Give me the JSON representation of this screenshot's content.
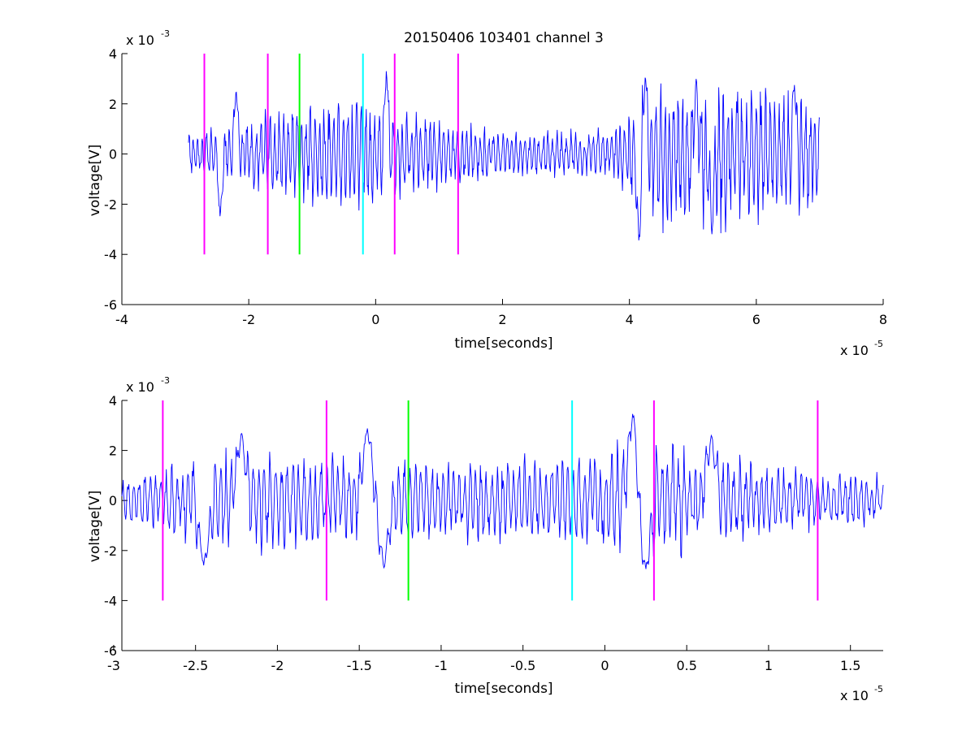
{
  "colors": {
    "signal": "#0000ff",
    "axis": "#000000",
    "marker_magenta": "#ff00ff",
    "marker_green": "#00ff00",
    "marker_cyan": "#00ffff",
    "background": "#ffffff"
  },
  "chart_data": [
    {
      "type": "line",
      "title": "20150406 103401 channel 3",
      "xlabel": "time[seconds]",
      "ylabel": "voltage[V]",
      "x_exponent_label": "x 10",
      "x_exponent": "-5",
      "y_exponent_label": "x 10",
      "y_exponent": "-3",
      "xlim": [
        -4,
        8
      ],
      "ylim": [
        -6,
        4
      ],
      "xticks": [
        "-4",
        "-2",
        "0",
        "2",
        "4",
        "6",
        "8"
      ],
      "yticks": [
        "-6",
        "-4",
        "-2",
        "0",
        "2",
        "4"
      ],
      "grid": false,
      "series": [
        {
          "color": "signal",
          "x_range": [
            -2.95,
            7.0
          ],
          "env_points": [
            [
              -2.95,
              0.8
            ],
            [
              -0.3,
              2.2
            ],
            [
              0.3,
              1.6
            ],
            [
              2.0,
              0.8
            ],
            [
              3.8,
              0.9
            ],
            [
              4.2,
              2.5
            ],
            [
              5.2,
              2.7
            ],
            [
              6.0,
              2.4
            ],
            [
              6.5,
              2.6
            ],
            [
              7.0,
              2.1
            ]
          ],
          "shape_points": [
            {
              "x": 0.17,
              "y": 3.5
            },
            {
              "x": 4.15,
              "y": -3.6
            },
            {
              "x": 4.25,
              "y": 3.3
            },
            {
              "x": 5.3,
              "y": -3.2
            },
            {
              "x": 5.05,
              "y": 3.0
            },
            {
              "x": 6.6,
              "y": 2.9
            },
            {
              "x": -2.2,
              "y": 2.7
            },
            {
              "x": -2.45,
              "y": -2.6
            }
          ]
        }
      ],
      "markers": [
        {
          "x": -2.7,
          "y_from": -4,
          "y_to": 4,
          "color": "marker_magenta"
        },
        {
          "x": -1.7,
          "y_from": -4,
          "y_to": 4,
          "color": "marker_magenta"
        },
        {
          "x": -1.2,
          "y_from": -4,
          "y_to": 4,
          "color": "marker_green"
        },
        {
          "x": -0.2,
          "y_from": -4,
          "y_to": 4,
          "color": "marker_cyan"
        },
        {
          "x": 0.3,
          "y_from": -4,
          "y_to": 4,
          "color": "marker_magenta"
        },
        {
          "x": 1.3,
          "y_from": -4,
          "y_to": 4,
          "color": "marker_magenta"
        }
      ]
    },
    {
      "type": "line",
      "title": "",
      "xlabel": "time[seconds]",
      "ylabel": "voltage[V]",
      "x_exponent_label": "x 10",
      "x_exponent": "-5",
      "y_exponent_label": "x 10",
      "y_exponent": "-3",
      "xlim": [
        -2.95,
        1.7
      ],
      "ylim": [
        -6,
        4
      ],
      "xticks": [
        "-3",
        "-2.5",
        "-2",
        "-1.5",
        "-1",
        "-0.5",
        "0",
        "0.5",
        "1",
        "1.5"
      ],
      "xtick_values": [
        -3,
        -2.5,
        -2,
        -1.5,
        -1,
        -0.5,
        0,
        0.5,
        1,
        1.5
      ],
      "yticks": [
        "-6",
        "-4",
        "-2",
        "0",
        "2",
        "4"
      ],
      "grid": false,
      "series": [
        {
          "color": "signal",
          "x_range": [
            -2.95,
            1.7
          ],
          "env_points": [
            [
              -2.95,
              0.8
            ],
            [
              -2.3,
              1.9
            ],
            [
              -2.0,
              1.7
            ],
            [
              -1.5,
              1.6
            ],
            [
              -1.0,
              1.4
            ],
            [
              -0.5,
              1.6
            ],
            [
              -0.2,
              1.6
            ],
            [
              0.2,
              2.4
            ],
            [
              0.5,
              2.0
            ],
            [
              1.0,
              1.2
            ],
            [
              1.7,
              0.9
            ]
          ],
          "shape_points": [
            {
              "x": 0.17,
              "y": 3.5
            },
            {
              "x": -2.22,
              "y": 2.7
            },
            {
              "x": -2.45,
              "y": -2.6
            },
            {
              "x": 0.25,
              "y": -2.8
            },
            {
              "x": -1.35,
              "y": -2.7
            },
            {
              "x": 0.65,
              "y": 2.6
            },
            {
              "x": -1.45,
              "y": 2.9
            }
          ]
        }
      ],
      "markers": [
        {
          "x": -2.7,
          "y_from": -4,
          "y_to": 4,
          "color": "marker_magenta"
        },
        {
          "x": -1.7,
          "y_from": -4,
          "y_to": 4,
          "color": "marker_magenta"
        },
        {
          "x": -1.2,
          "y_from": -4,
          "y_to": 4,
          "color": "marker_green"
        },
        {
          "x": -0.2,
          "y_from": -4,
          "y_to": 4,
          "color": "marker_cyan"
        },
        {
          "x": 0.3,
          "y_from": -4,
          "y_to": 4,
          "color": "marker_magenta"
        },
        {
          "x": 1.3,
          "y_from": -4,
          "y_to": 4,
          "color": "marker_magenta"
        }
      ]
    }
  ]
}
